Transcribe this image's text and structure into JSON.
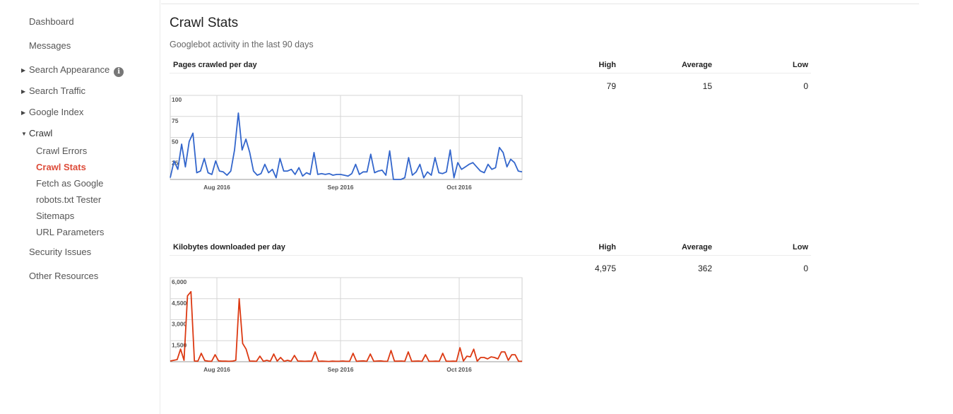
{
  "sidebar": {
    "dashboard": "Dashboard",
    "messages": "Messages",
    "search_appearance": "Search Appearance",
    "search_traffic": "Search Traffic",
    "google_index": "Google Index",
    "crawl": "Crawl",
    "crawl_items": [
      "Crawl Errors",
      "Crawl Stats",
      "Fetch as Google",
      "robots.txt Tester",
      "Sitemaps",
      "URL Parameters"
    ],
    "security_issues": "Security Issues",
    "other_resources": "Other Resources",
    "info_icon_glyph": "i"
  },
  "main": {
    "title": "Crawl Stats",
    "subtitle": "Googlebot activity in the last 90 days",
    "columns": {
      "high": "High",
      "average": "Average",
      "low": "Low"
    },
    "pages": {
      "label": "Pages crawled per day",
      "high": "79",
      "average": "15",
      "low": "0"
    },
    "kilobytes": {
      "label": "Kilobytes downloaded per day",
      "high": "4,975",
      "average": "362",
      "low": "0"
    }
  },
  "chart_data": [
    {
      "type": "line",
      "title": "Pages crawled per day",
      "color": "#3366cc",
      "x_tick_labels": [
        "Aug 2016",
        "Sep 2016",
        "Oct 2016"
      ],
      "y_tick_labels": [
        "25",
        "50",
        "75",
        "100"
      ],
      "ylim": [
        0,
        100
      ],
      "grid": true,
      "values": [
        2,
        22,
        12,
        42,
        15,
        45,
        55,
        8,
        10,
        25,
        8,
        6,
        22,
        10,
        9,
        5,
        10,
        35,
        79,
        35,
        48,
        32,
        10,
        5,
        7,
        18,
        8,
        12,
        2,
        25,
        10,
        10,
        12,
        6,
        14,
        4,
        8,
        6,
        32,
        6,
        7,
        6,
        7,
        5,
        6,
        6,
        5,
        4,
        7,
        18,
        6,
        9,
        9,
        30,
        8,
        10,
        11,
        5,
        34,
        0,
        0,
        0,
        2,
        26,
        5,
        9,
        18,
        2,
        9,
        5,
        26,
        8,
        7,
        9,
        35,
        2,
        20,
        12,
        15,
        18,
        20,
        15,
        10,
        8,
        18,
        12,
        14,
        38,
        32,
        15,
        24,
        20,
        10,
        9
      ]
    },
    {
      "type": "line",
      "title": "Kilobytes downloaded per day",
      "color": "#dc3912",
      "x_tick_labels": [
        "Aug 2016",
        "Sep 2016",
        "Oct 2016"
      ],
      "y_tick_labels": [
        "1,500",
        "3,000",
        "4,500",
        "6,000"
      ],
      "ylim": [
        0,
        6000
      ],
      "grid": true,
      "values": [
        50,
        100,
        150,
        900,
        100,
        4700,
        5000,
        50,
        40,
        600,
        80,
        40,
        30,
        500,
        60,
        40,
        40,
        30,
        40,
        100,
        4500,
        1300,
        900,
        50,
        40,
        30,
        400,
        30,
        100,
        30,
        550,
        40,
        300,
        30,
        100,
        30,
        450,
        50,
        40,
        30,
        40,
        40,
        700,
        30,
        40,
        30,
        20,
        40,
        30,
        30,
        50,
        30,
        30,
        600,
        30,
        50,
        60,
        30,
        550,
        30,
        50,
        60,
        30,
        30,
        800,
        40,
        40,
        50,
        30,
        700,
        30,
        40,
        50,
        30,
        500,
        30,
        30,
        40,
        30,
        600,
        40,
        30,
        40,
        30,
        1000,
        50,
        400,
        350,
        900,
        40,
        300,
        300,
        200,
        350,
        300,
        200,
        700,
        700,
        100,
        500,
        500,
        30,
        30
      ]
    }
  ]
}
